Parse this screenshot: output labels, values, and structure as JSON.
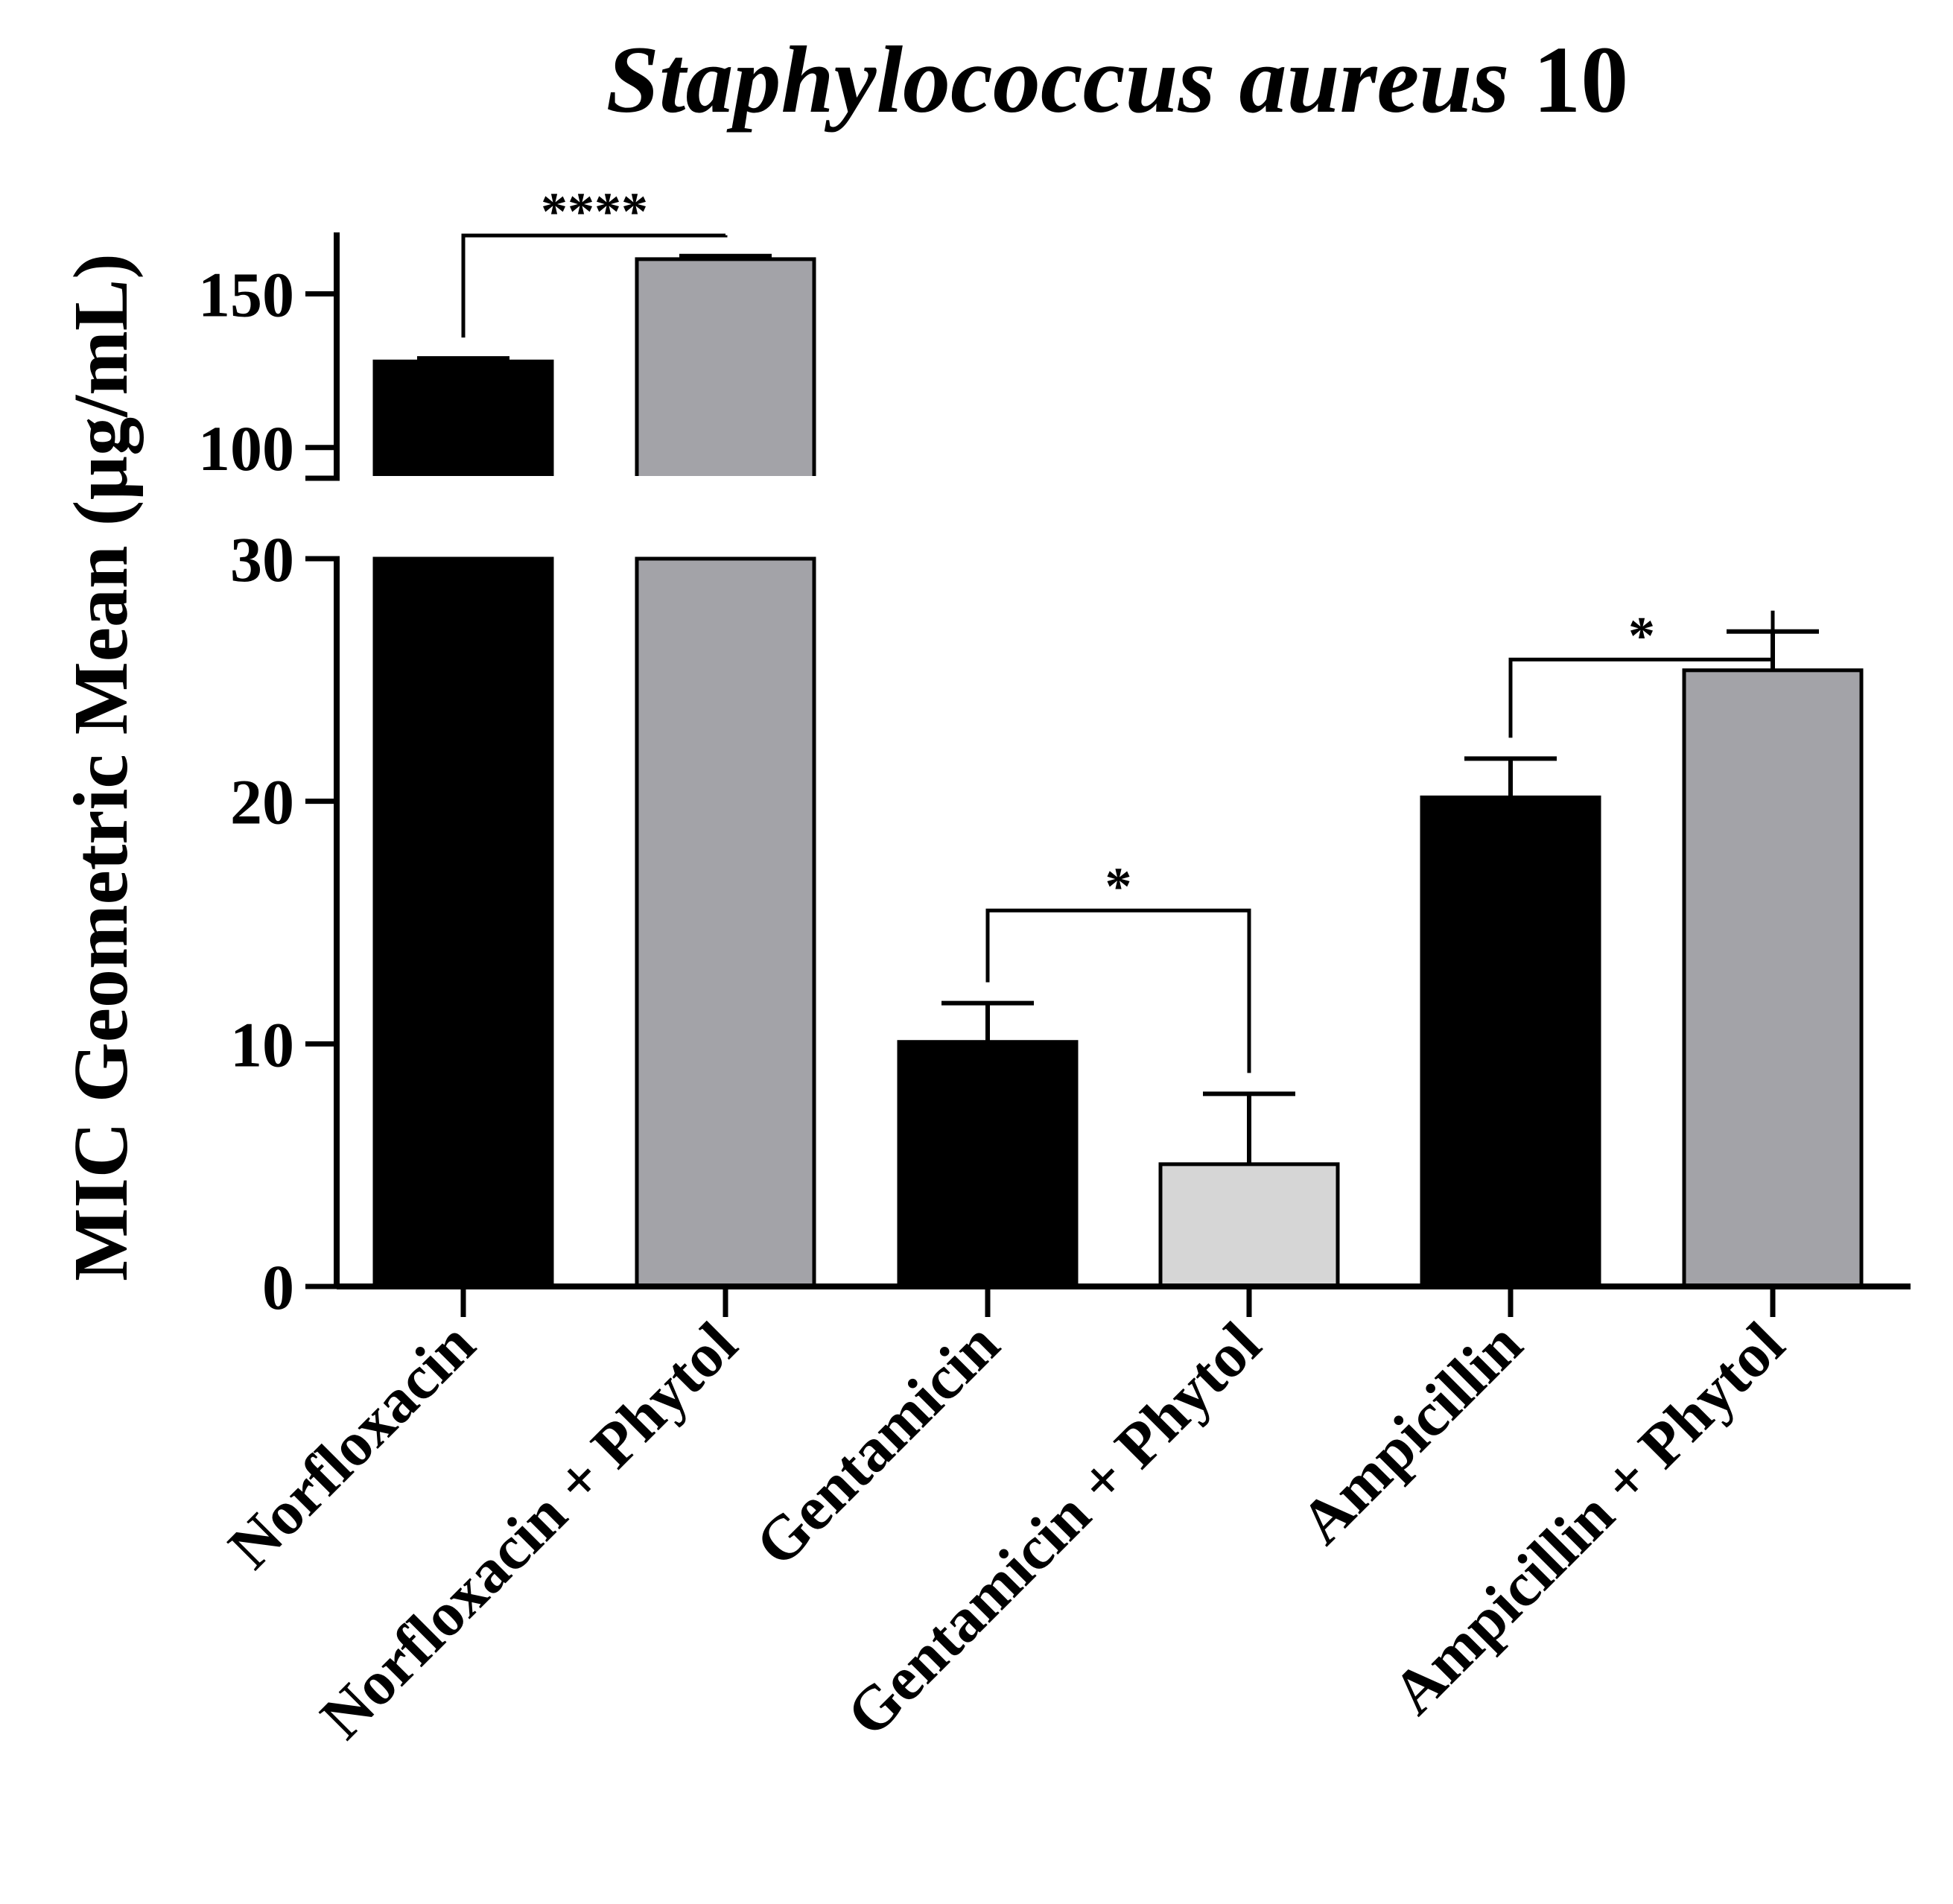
{
  "chart_data": {
    "type": "bar",
    "title": {
      "italic": "Staphylococcus aureus",
      "suffix": " 10"
    },
    "ylabel": "MIC Geometric Mean (µg/mL)",
    "xlabel": "",
    "ylim": [
      0,
      170
    ],
    "axis_break": {
      "lower": [
        0,
        30
      ],
      "upper": [
        90,
        170
      ]
    },
    "lower_ticks": [
      0,
      10,
      20,
      30
    ],
    "upper_ticks": [
      100,
      150
    ],
    "categories": [
      "Norfloxacin",
      "Norfloxacin + Phytol",
      "Gentamicin",
      "Gentamicin + Phytol",
      "Ampicillin",
      "Ampicillin + Phytol"
    ],
    "values": [
      128,
      161.3,
      10.08,
      5.04,
      20.16,
      25.4
    ],
    "errors": [
      1,
      1,
      1.6,
      2.9,
      1.6,
      1.6
    ],
    "bar_colors": [
      "#000000",
      "#a3a3a8",
      "#000000",
      "#d6d6d6",
      "#000000",
      "#a3a3a8"
    ],
    "significance": [
      {
        "pair": [
          0,
          1
        ],
        "label": "****",
        "y": 169
      },
      {
        "pair": [
          2,
          3
        ],
        "label": "*",
        "y": 15.5
      },
      {
        "pair": [
          4,
          5
        ],
        "label": "*",
        "y": 31
      }
    ]
  }
}
